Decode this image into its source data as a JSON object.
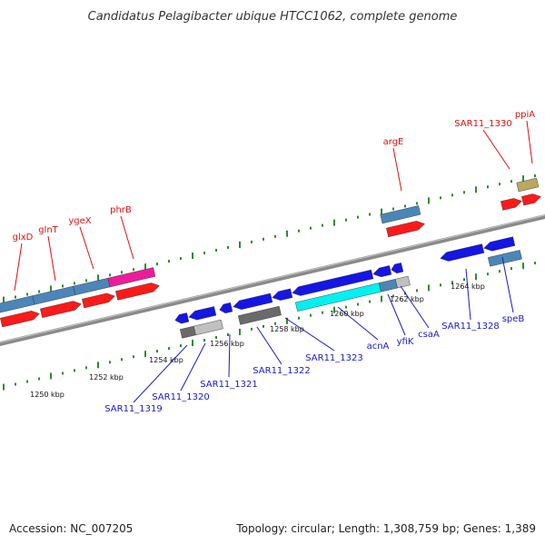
{
  "title": "Candidatus Pelagibacter ubique HTCC1062, complete genome",
  "footer": {
    "accession": "Accession: NC_007205",
    "summary": "Topology: circular; Length: 1,308,759 bp; Genes: 1,389"
  },
  "colors": {
    "backbone": "#8a8a8a",
    "tick": "#2e8b2e",
    "label_red": "#dd1111",
    "label_blue": "#1a1ac8",
    "cds_red": "#ff1a1a",
    "cds_blue": "#1515e6",
    "gene_steelblue": "#4a86b8",
    "gene_magenta": "#ee1c9a",
    "gene_cyan": "#00f0f0",
    "gene_darkgray": "#6a6a6a",
    "gene_lightgray": "#c0c0c0",
    "gene_khaki": "#b8a860"
  },
  "scale_labels": [
    "1250 kbp",
    "1252 kbp",
    "1254 kbp",
    "1256 kbp",
    "1258 kbp",
    "1260 kbp",
    "1262 kbp",
    "1264 kbp"
  ],
  "forward_labels": [
    "glxD",
    "glnT",
    "ygeX",
    "phrB",
    "argE",
    "SAR11_1330",
    "ppiA"
  ],
  "reverse_labels": [
    "SAR11_1319",
    "SAR11_1320",
    "SAR11_1321",
    "SAR11_1322",
    "SAR11_1323",
    "acnA",
    "yfiK",
    "csaA",
    "SAR11_1328",
    "speB"
  ]
}
